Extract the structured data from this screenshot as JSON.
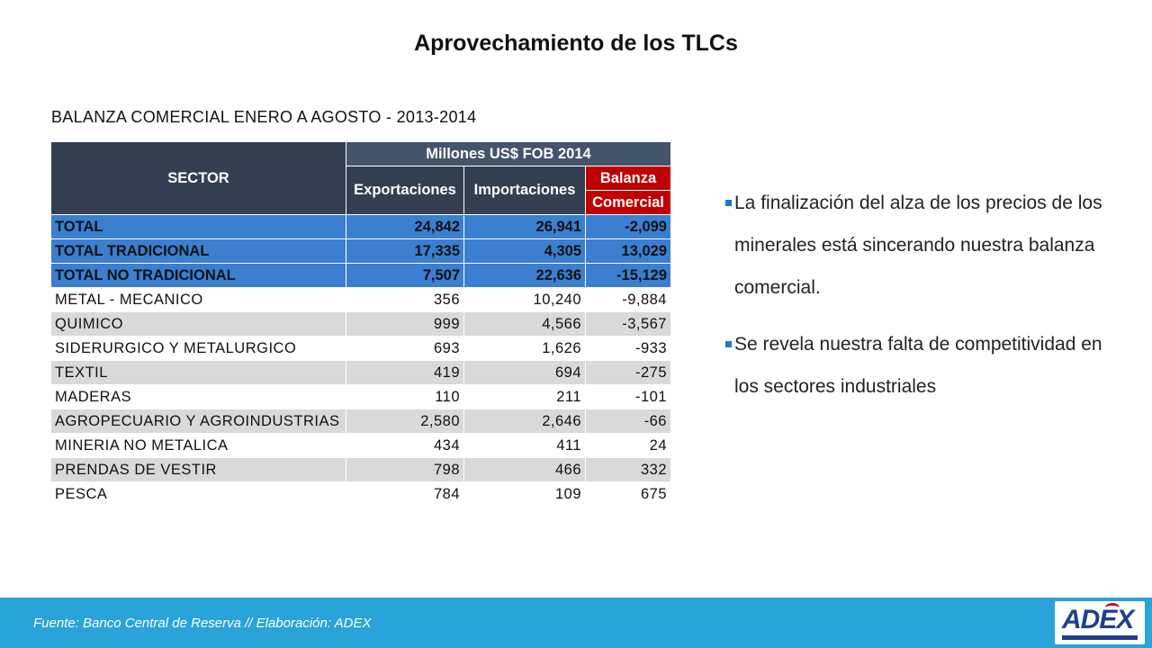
{
  "title": "Aprovechamiento de los TLCs",
  "table_caption": "BALANZA COMERCIAL ENERO A AGOSTO - 2013-2014",
  "table": {
    "sector_header": "SECTOR",
    "group_header": "Millones US$ FOB 2014",
    "col_exportaciones": "Exportaciones",
    "col_importaciones": "Importaciones",
    "col_balanza_line1": "Balanza",
    "col_balanza_line2": "Comercial",
    "totals": [
      {
        "sector": "TOTAL",
        "exp": "24,842",
        "imp": "26,941",
        "bal": "-2,099"
      },
      {
        "sector": "TOTAL TRADICIONAL",
        "exp": "17,335",
        "imp": "4,305",
        "bal": "13,029"
      },
      {
        "sector": "TOTAL NO TRADICIONAL",
        "exp": "7,507",
        "imp": "22,636",
        "bal": "-15,129"
      }
    ],
    "rows": [
      {
        "sector": "METAL - MECANICO",
        "exp": "356",
        "imp": "10,240",
        "bal": "-9,884"
      },
      {
        "sector": "QUIMICO",
        "exp": "999",
        "imp": "4,566",
        "bal": "-3,567"
      },
      {
        "sector": "SIDERURGICO Y METALURGICO",
        "exp": "693",
        "imp": "1,626",
        "bal": "-933"
      },
      {
        "sector": "TEXTIL",
        "exp": "419",
        "imp": "694",
        "bal": "-275"
      },
      {
        "sector": "MADERAS",
        "exp": "110",
        "imp": "211",
        "bal": "-101"
      },
      {
        "sector": "AGROPECUARIO Y AGROINDUSTRIAS",
        "exp": "2,580",
        "imp": "2,646",
        "bal": "-66"
      },
      {
        "sector": "MINERIA NO METALICA",
        "exp": "434",
        "imp": "411",
        "bal": "24"
      },
      {
        "sector": "PRENDAS DE VESTIR",
        "exp": "798",
        "imp": "466",
        "bal": "332"
      },
      {
        "sector": "PESCA",
        "exp": "784",
        "imp": "109",
        "bal": "675"
      }
    ]
  },
  "bullets": [
    "La finalización del alza de los precios de los minerales está sincerando nuestra balanza comercial.",
    "Se revela nuestra falta de competitividad en los sectores industriales"
  ],
  "footer": {
    "source": "Fuente: Banco Central de Reserva // Elaboración: ADEX",
    "logo_text": "ADEX"
  },
  "colors": {
    "header_dark": "#333f50",
    "header_group": "#44546a",
    "balanza_header": "#c00000",
    "total_rows": "#3a7fd0",
    "shaded_rows": "#d9d9d9",
    "footer_bar": "#2aa3d8",
    "logo_blue": "#1f3f8f"
  }
}
